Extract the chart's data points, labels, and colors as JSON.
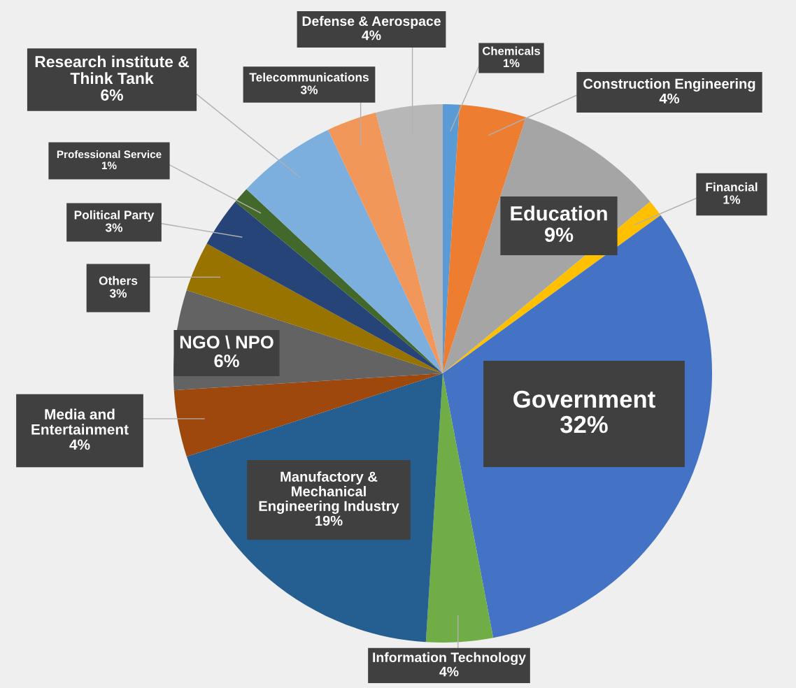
{
  "chart_data": {
    "type": "pie",
    "categories": [
      "Chemicals",
      "Construction Engineering",
      "Education",
      "Financial",
      "Government",
      "Information Technology",
      "Manufactory &\nMechanical\nEngineering Industry",
      "Media and\nEntertainment",
      "NGO \\ NPO",
      "Others",
      "Political Party",
      "Professional Service",
      "Research institute &\nThink Tank",
      "Telecommunications",
      "Defense & Aerospace"
    ],
    "values": [
      1,
      4,
      9,
      1,
      32,
      4,
      19,
      4,
      6,
      3,
      3,
      1,
      6,
      3,
      4
    ],
    "value_labels": [
      "1%",
      "4%",
      "9%",
      "1%",
      "32%",
      "4%",
      "19%",
      "4%",
      "6%",
      "3%",
      "3%",
      "1%",
      "6%",
      "3%",
      "4%"
    ],
    "colors": [
      "#5b9bd5",
      "#ed7d31",
      "#a5a5a5",
      "#ffc000",
      "#4472c4",
      "#70ad47",
      "#255e91",
      "#9e480e",
      "#636363",
      "#997300",
      "#264478",
      "#43682b",
      "#7cafdd",
      "#f1975a",
      "#b7b7b7"
    ]
  }
}
